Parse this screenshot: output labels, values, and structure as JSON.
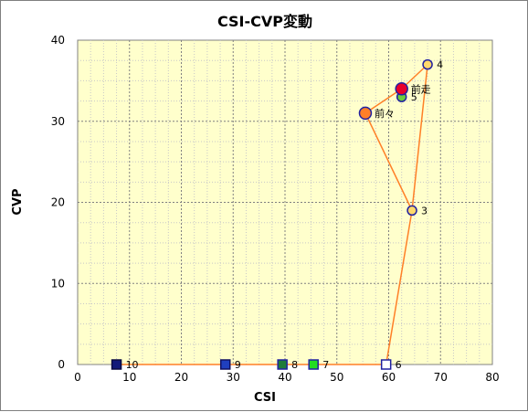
{
  "chart_data": {
    "type": "scatter",
    "title": "CSI-CVP変動",
    "xlabel": "CSI",
    "ylabel": "CVP",
    "xlim": [
      0,
      80
    ],
    "ylim": [
      0,
      40
    ],
    "xticks": [
      "0",
      "10",
      "20",
      "30",
      "40",
      "50",
      "60",
      "70",
      "80"
    ],
    "yticks": [
      "0",
      "10",
      "20",
      "30",
      "40"
    ],
    "grid": true,
    "line_color": "#ff7f27",
    "plot_background": "#ffffcc",
    "line_order": [
      "10",
      "9",
      "8",
      "7",
      "6",
      "3",
      "前々",
      "前走"
    ],
    "points": [
      {
        "label": "前走",
        "x": 62.5,
        "y": 34,
        "marker": "circle-large",
        "fill": "#e8002a",
        "stroke": "#2020a0"
      },
      {
        "label": "前々",
        "x": 55.5,
        "y": 31,
        "marker": "circle-large",
        "fill": "#ff7f27",
        "stroke": "#2020a0"
      },
      {
        "label": "3",
        "x": 64.5,
        "y": 19,
        "marker": "circle",
        "fill": "#ffd86b",
        "stroke": "#2020a0"
      },
      {
        "label": "4",
        "x": 67.5,
        "y": 37,
        "marker": "circle",
        "fill": "#ffd86b",
        "stroke": "#2020a0"
      },
      {
        "label": "5",
        "x": 62.5,
        "y": 33,
        "marker": "circle",
        "fill": "#6ccf3a",
        "stroke": "#2020a0"
      },
      {
        "label": "6",
        "x": 59.5,
        "y": 0,
        "marker": "square",
        "fill": "#ffffff",
        "stroke": "#2020a0"
      },
      {
        "label": "7",
        "x": 45.5,
        "y": 0,
        "marker": "square",
        "fill": "#22dd22",
        "stroke": "#2020a0"
      },
      {
        "label": "8",
        "x": 39.5,
        "y": 0,
        "marker": "square",
        "fill": "#1e7a3a",
        "stroke": "#2020a0"
      },
      {
        "label": "9",
        "x": 28.5,
        "y": 0,
        "marker": "square",
        "fill": "#1f3fbf",
        "stroke": "#101060"
      },
      {
        "label": "10",
        "x": 7.5,
        "y": 0,
        "marker": "square",
        "fill": "#12197a",
        "stroke": "#0a0a40"
      }
    ],
    "connecting_lines": [
      {
        "from": "前走",
        "to": "4"
      },
      {
        "from": "4",
        "to": "3"
      }
    ]
  }
}
